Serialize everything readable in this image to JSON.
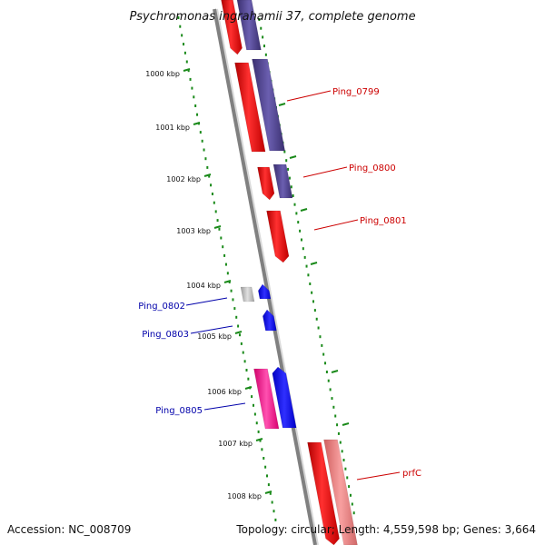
{
  "title": "Psychromonas ingrahamii 37, complete genome",
  "accession": "Accession: NC_008709",
  "summary": "Topology: circular; Length: 4,559,598 bp; Genes: 3,664",
  "ruler_labels": [
    "1000 kbp",
    "1001 kbp",
    "1002 kbp",
    "1003 kbp",
    "1004 kbp",
    "1005 kbp",
    "1006 kbp",
    "1007 kbp",
    "1008 kbp"
  ],
  "gene_labels": [
    {
      "name": "Ping_0799",
      "color": "#cc0000"
    },
    {
      "name": "Ping_0800",
      "color": "#cc0000"
    },
    {
      "name": "Ping_0801",
      "color": "#cc0000"
    },
    {
      "name": "Ping_0802",
      "color": "#0000aa"
    },
    {
      "name": "Ping_0803",
      "color": "#0000aa"
    },
    {
      "name": "Ping_0805",
      "color": "#0000aa"
    },
    {
      "name": "prfC",
      "color": "#cc0000"
    }
  ],
  "colors": {
    "backbone": "#888888",
    "ruler_ticks": "#1a8a1a",
    "cds_forward": "#ff0000",
    "cds_forward_light": "#f08080",
    "cds_reverse": "#0000ff",
    "gene_navy": "#4b3f8a",
    "gene_pink": "#ff1493",
    "gene_gray": "#bbbbbb"
  }
}
